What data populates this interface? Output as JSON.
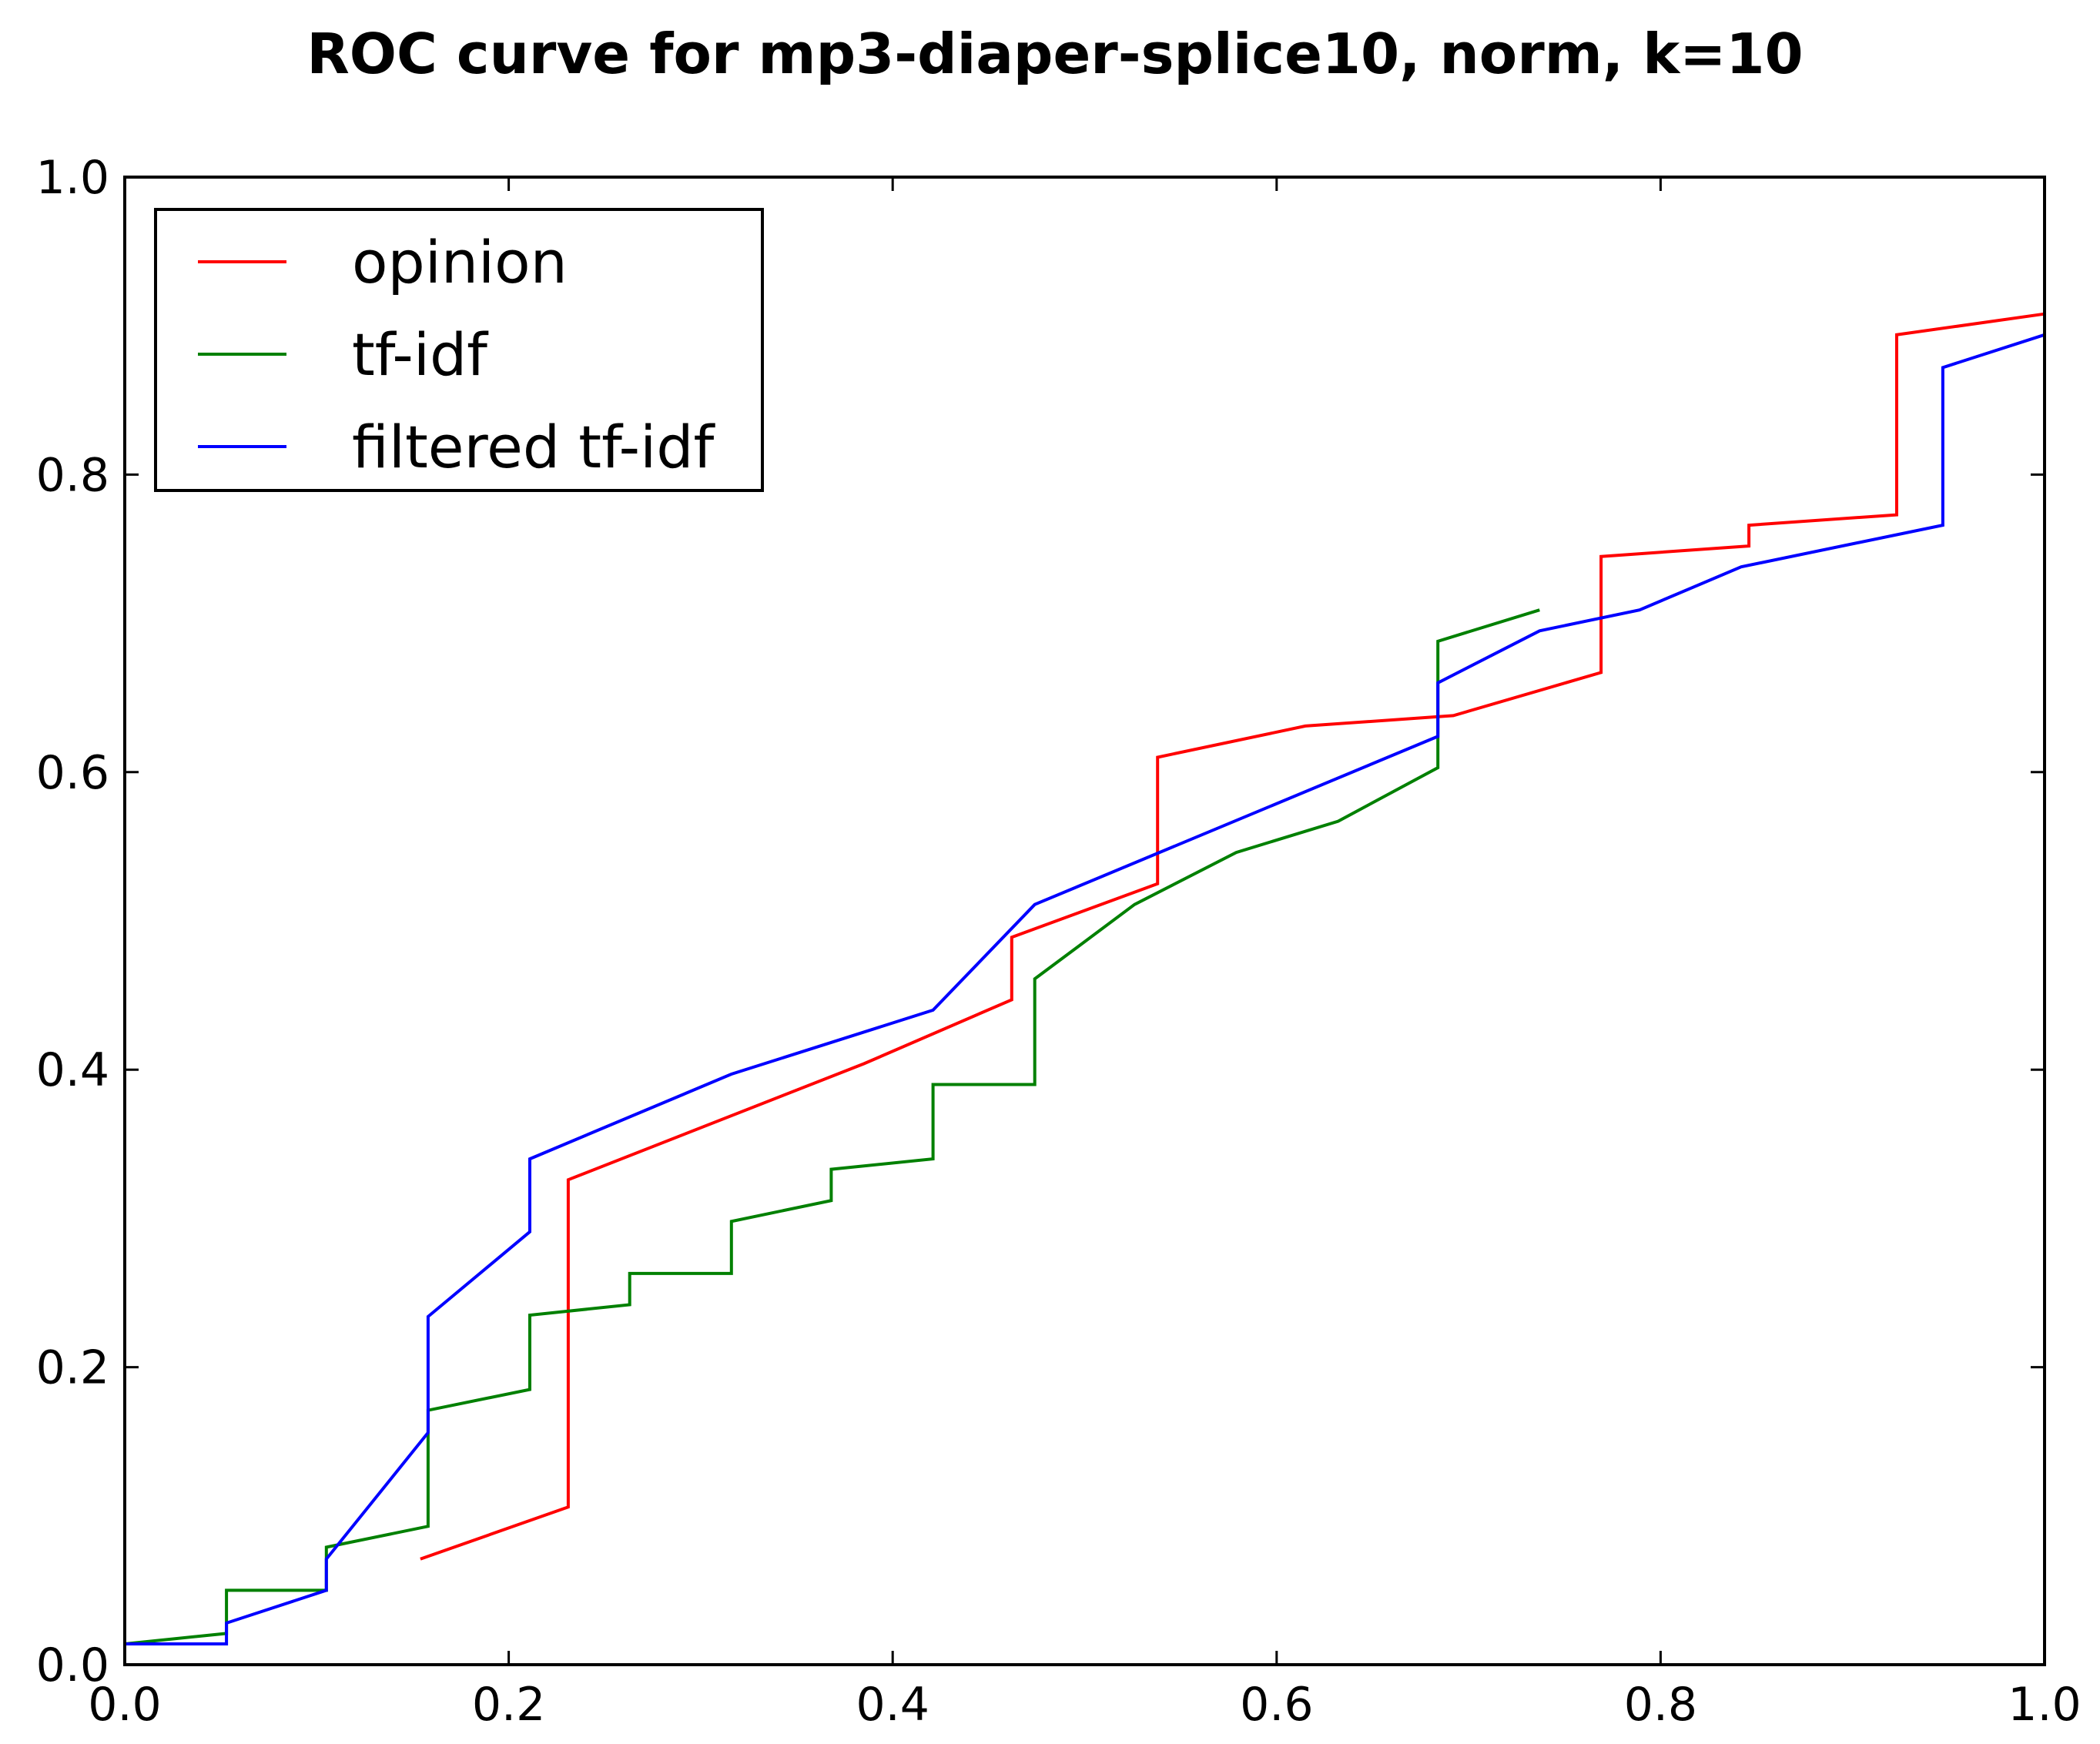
{
  "chart_data": {
    "type": "line",
    "title": "ROC curve for mp3-diaper-splice10, norm, k=10",
    "xlabel": "",
    "ylabel": "",
    "xlim": [
      0.0,
      1.0
    ],
    "ylim": [
      0.0,
      1.0
    ],
    "x_ticks": [
      "0.0",
      "0.2",
      "0.4",
      "0.6",
      "0.8",
      "1.0"
    ],
    "y_ticks": [
      "0.0",
      "0.2",
      "0.4",
      "0.6",
      "0.8",
      "1.0"
    ],
    "grid": false,
    "legend_position": "top-left",
    "series": [
      {
        "name": "opinion",
        "color": "#ff0000",
        "points": [
          [
            0.154,
            0.071
          ],
          [
            0.231,
            0.106
          ],
          [
            0.231,
            0.326
          ],
          [
            0.385,
            0.404
          ],
          [
            0.462,
            0.447
          ],
          [
            0.462,
            0.489
          ],
          [
            0.538,
            0.525
          ],
          [
            0.538,
            0.61
          ],
          [
            0.615,
            0.631
          ],
          [
            0.692,
            0.638
          ],
          [
            0.769,
            0.667
          ],
          [
            0.769,
            0.745
          ],
          [
            0.846,
            0.752
          ],
          [
            0.846,
            0.766
          ],
          [
            0.923,
            0.773
          ],
          [
            0.923,
            0.894
          ],
          [
            1.0,
            0.908
          ]
        ]
      },
      {
        "name": "tf-idf",
        "color": "#008000",
        "points": [
          [
            0.0,
            0.014
          ],
          [
            0.053,
            0.021
          ],
          [
            0.053,
            0.05
          ],
          [
            0.105,
            0.05
          ],
          [
            0.105,
            0.079
          ],
          [
            0.158,
            0.093
          ],
          [
            0.158,
            0.171
          ],
          [
            0.211,
            0.185
          ],
          [
            0.211,
            0.235
          ],
          [
            0.263,
            0.242
          ],
          [
            0.263,
            0.263
          ],
          [
            0.316,
            0.263
          ],
          [
            0.316,
            0.298
          ],
          [
            0.368,
            0.312
          ],
          [
            0.368,
            0.333
          ],
          [
            0.421,
            0.34
          ],
          [
            0.421,
            0.39
          ],
          [
            0.474,
            0.39
          ],
          [
            0.474,
            0.461
          ],
          [
            0.526,
            0.511
          ],
          [
            0.579,
            0.546
          ],
          [
            0.632,
            0.567
          ],
          [
            0.684,
            0.603
          ],
          [
            0.684,
            0.688
          ],
          [
            0.737,
            0.709
          ]
        ]
      },
      {
        "name": "filtered tf-idf",
        "color": "#0000ff",
        "points": [
          [
            0.0,
            0.014
          ],
          [
            0.053,
            0.014
          ],
          [
            0.053,
            0.028
          ],
          [
            0.105,
            0.05
          ],
          [
            0.105,
            0.071
          ],
          [
            0.158,
            0.156
          ],
          [
            0.158,
            0.234
          ],
          [
            0.211,
            0.291
          ],
          [
            0.211,
            0.34
          ],
          [
            0.316,
            0.397
          ],
          [
            0.421,
            0.44
          ],
          [
            0.474,
            0.511
          ],
          [
            0.684,
            0.624
          ],
          [
            0.684,
            0.66
          ],
          [
            0.737,
            0.695
          ],
          [
            0.789,
            0.709
          ],
          [
            0.842,
            0.738
          ],
          [
            0.947,
            0.766
          ],
          [
            0.947,
            0.872
          ],
          [
            1.0,
            0.894
          ]
        ]
      }
    ]
  }
}
